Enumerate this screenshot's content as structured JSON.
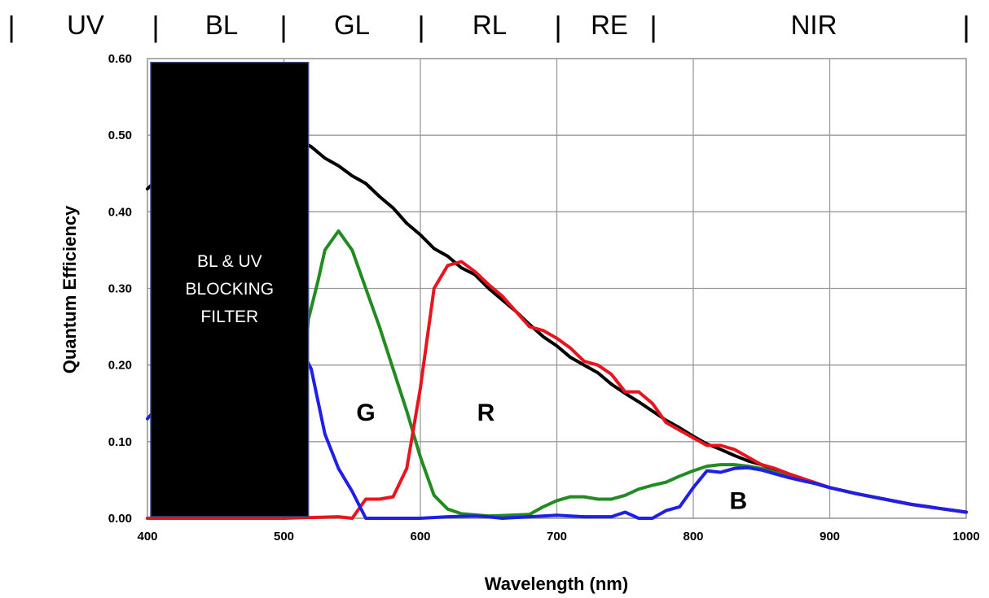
{
  "chart_data": {
    "type": "line",
    "xlabel": "Wavelength (nm)",
    "ylabel": "Quantum Efficiency",
    "xlim": [
      400,
      1000
    ],
    "ylim": [
      0,
      0.6
    ],
    "x_ticks": [
      "400",
      "500",
      "600",
      "700",
      "800",
      "900",
      "1000"
    ],
    "y_ticks": [
      "0.00",
      "0.10",
      "0.20",
      "0.30",
      "0.40",
      "0.50",
      "0.60"
    ],
    "grid": true,
    "bands": [
      {
        "label": "UV",
        "start": 400,
        "end": 405
      },
      {
        "label": "BL",
        "start": 405,
        "end": 500
      },
      {
        "label": "GL",
        "start": 500,
        "end": 600
      },
      {
        "label": "RL",
        "start": 600,
        "end": 700
      },
      {
        "label": "RE",
        "start": 700,
        "end": 770
      },
      {
        "label": "NIR",
        "start": 770,
        "end": 1000
      }
    ],
    "filter_block": {
      "x_start": 400,
      "x_end": 518,
      "y_top": 0.595,
      "lines": [
        "BL & UV",
        "BLOCKING",
        "FILTER"
      ]
    },
    "series": [
      {
        "id": "mono",
        "color": "#000000",
        "x": [
          400,
          430,
          460,
          490,
          510,
          520,
          530,
          540,
          550,
          560,
          570,
          580,
          590,
          600,
          610,
          620,
          630,
          640,
          650,
          660,
          670,
          680,
          690,
          700,
          710,
          720,
          730,
          740,
          750,
          760,
          770,
          780,
          790,
          800,
          810,
          820,
          830,
          840,
          850,
          860,
          870,
          880,
          890,
          900,
          920,
          940,
          960,
          980,
          1000
        ],
        "y": [
          0.43,
          0.48,
          0.5,
          0.5,
          0.495,
          0.485,
          0.47,
          0.46,
          0.447,
          0.437,
          0.42,
          0.405,
          0.385,
          0.37,
          0.352,
          0.342,
          0.327,
          0.318,
          0.3,
          0.285,
          0.27,
          0.253,
          0.237,
          0.225,
          0.21,
          0.2,
          0.19,
          0.175,
          0.163,
          0.152,
          0.14,
          0.128,
          0.118,
          0.107,
          0.097,
          0.09,
          0.082,
          0.075,
          0.07,
          0.063,
          0.056,
          0.05,
          0.045,
          0.04,
          0.032,
          0.025,
          0.018,
          0.013,
          0.008
        ]
      },
      {
        "id": "green",
        "name": "G",
        "color": "#228b22",
        "x": [
          400,
          500,
          510,
          518,
          525,
          530,
          540,
          550,
          560,
          570,
          580,
          590,
          600,
          610,
          620,
          630,
          650,
          680,
          690,
          700,
          710,
          720,
          730,
          740,
          750,
          760,
          770,
          780,
          790,
          800,
          810,
          820,
          830,
          840,
          850,
          860,
          870,
          880,
          890,
          900,
          920,
          940,
          960,
          980,
          1000
        ],
        "y": [
          0.0,
          0.0,
          0.1,
          0.26,
          0.31,
          0.35,
          0.375,
          0.35,
          0.3,
          0.25,
          0.195,
          0.14,
          0.08,
          0.03,
          0.012,
          0.006,
          0.003,
          0.005,
          0.015,
          0.023,
          0.028,
          0.028,
          0.025,
          0.025,
          0.03,
          0.038,
          0.043,
          0.047,
          0.055,
          0.062,
          0.068,
          0.07,
          0.07,
          0.068,
          0.065,
          0.06,
          0.055,
          0.05,
          0.045,
          0.04,
          0.032,
          0.025,
          0.018,
          0.013,
          0.008
        ]
      },
      {
        "id": "red",
        "name": "R",
        "color": "#e8141e",
        "x": [
          400,
          500,
          540,
          550,
          560,
          570,
          580,
          590,
          600,
          610,
          620,
          630,
          640,
          650,
          660,
          670,
          680,
          690,
          700,
          710,
          720,
          730,
          740,
          750,
          760,
          770,
          780,
          790,
          800,
          810,
          820,
          830,
          840,
          850,
          860,
          870,
          880,
          890,
          900,
          920,
          940,
          960,
          980,
          1000
        ],
        "y": [
          0.0,
          0.0,
          0.002,
          0.0,
          0.025,
          0.025,
          0.028,
          0.065,
          0.17,
          0.3,
          0.33,
          0.335,
          0.322,
          0.305,
          0.29,
          0.27,
          0.25,
          0.245,
          0.235,
          0.222,
          0.205,
          0.2,
          0.188,
          0.165,
          0.165,
          0.15,
          0.125,
          0.115,
          0.105,
          0.095,
          0.095,
          0.09,
          0.08,
          0.07,
          0.065,
          0.058,
          0.052,
          0.046,
          0.04,
          0.032,
          0.025,
          0.018,
          0.013,
          0.008
        ]
      },
      {
        "id": "blue",
        "name": "B",
        "color": "#1f1fe6",
        "x": [
          400,
          460,
          500,
          510,
          520,
          530,
          540,
          550,
          560,
          570,
          600,
          620,
          640,
          650,
          660,
          680,
          690,
          700,
          710,
          720,
          730,
          740,
          750,
          760,
          770,
          780,
          790,
          800,
          810,
          820,
          830,
          840,
          850,
          860,
          870,
          880,
          890,
          900,
          920,
          940,
          960,
          980,
          1000
        ],
        "y": [
          0.13,
          0.25,
          0.24,
          0.23,
          0.195,
          0.11,
          0.065,
          0.035,
          0.0,
          0.0,
          0.0,
          0.002,
          0.003,
          0.002,
          0.0,
          0.002,
          0.003,
          0.004,
          0.003,
          0.002,
          0.002,
          0.002,
          0.008,
          0.0,
          0.0,
          0.01,
          0.015,
          0.04,
          0.062,
          0.06,
          0.065,
          0.066,
          0.063,
          0.058,
          0.053,
          0.049,
          0.045,
          0.04,
          0.032,
          0.025,
          0.018,
          0.013,
          0.008
        ]
      }
    ],
    "annotations": [
      {
        "text": "G",
        "x": 560,
        "y": 0.14
      },
      {
        "text": "R",
        "x": 648,
        "y": 0.14
      },
      {
        "text": "B",
        "x": 833,
        "y": 0.025
      }
    ]
  }
}
